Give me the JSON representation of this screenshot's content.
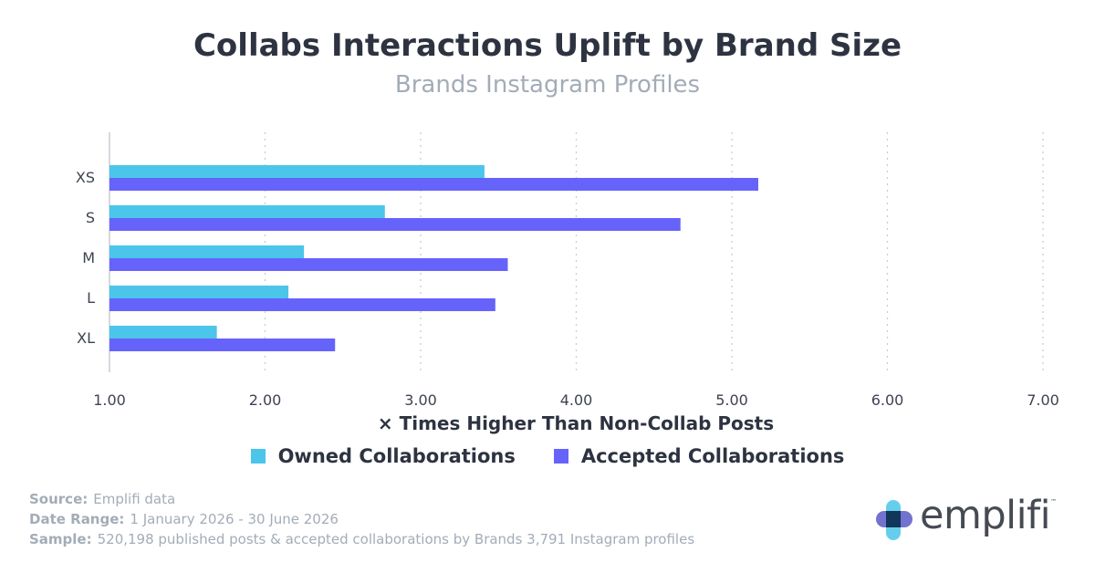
{
  "header": {
    "title": "Collabs Interactions Uplift by Brand Size",
    "subtitle": "Brands Instagram Profiles"
  },
  "chart_data": {
    "type": "bar",
    "orientation": "horizontal",
    "categories": [
      "XS",
      "S",
      "M",
      "L",
      "XL"
    ],
    "series": [
      {
        "name": "Owned Collaborations",
        "color": "#4bc5ea",
        "values": [
          3.41,
          2.77,
          2.25,
          2.15,
          1.69
        ]
      },
      {
        "name": "Accepted Collaborations",
        "color": "#6663fb",
        "values": [
          5.17,
          4.67,
          3.56,
          3.48,
          2.45
        ]
      }
    ],
    "xlabel": "× Times Higher Than Non-Collab Posts",
    "xlim": [
      1.0,
      7.0
    ],
    "xticks": [
      "1.00",
      "2.00",
      "3.00",
      "4.00",
      "5.00",
      "6.00",
      "7.00"
    ],
    "grid": "vertical dotted",
    "legend_position": "bottom"
  },
  "footer": {
    "source_label": "Source:",
    "source_value": "Emplifi data",
    "range_label": "Date Range:",
    "range_value": "1 January 2026 - 30 June 2026",
    "sample_label": "Sample:",
    "sample_value": "520,198 published posts & accepted collaborations by Brands 3,791 Instagram profiles"
  },
  "logo": {
    "text": "emplifi",
    "tm": "™"
  }
}
